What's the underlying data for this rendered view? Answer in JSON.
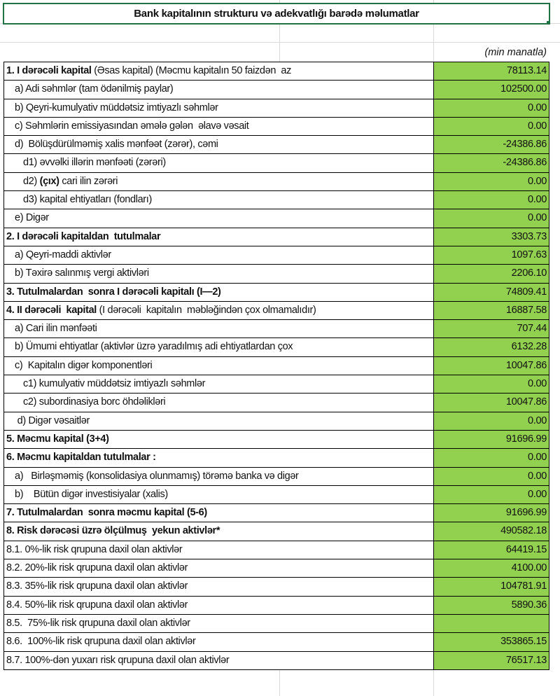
{
  "title": "Bank kapitalının strukturu və adekvatlığı barədə məlumatlar",
  "unit": "(min manatla)",
  "colors": {
    "value_fill": "#92d050",
    "selection": "#217346"
  },
  "rows": [
    {
      "indent": 0,
      "parts": [
        {
          "t": "1. I dərəcəli kapital",
          "b": true
        },
        {
          "t": " (Əsas kapital) (Məcmu kapitalın 50 faizdən  az"
        }
      ],
      "value": "78113.14"
    },
    {
      "indent": 1,
      "parts": [
        {
          "t": "a) Adi səhmlər (tam ödənilmiş paylar)"
        }
      ],
      "value": "102500.00"
    },
    {
      "indent": 1,
      "parts": [
        {
          "t": "b) Qeyri-kumulyativ müddətsiz imtiyazlı səhmlər"
        }
      ],
      "value": "0.00"
    },
    {
      "indent": 1,
      "parts": [
        {
          "t": "c) Səhmlərin emissiyasından əmələ gələn  əlavə vəsait"
        }
      ],
      "value": "0.00"
    },
    {
      "indent": 1,
      "parts": [
        {
          "t": "d)  Bölüşdürülməmiş xalis mənfəət (zərər), cəmi"
        }
      ],
      "value": "-24386.86"
    },
    {
      "indent": 2,
      "parts": [
        {
          "t": "d1) əvvəlki illərin mənfəəti (zərəri)"
        }
      ],
      "value": "-24386.86"
    },
    {
      "indent": 2,
      "parts": [
        {
          "t": "d2) "
        },
        {
          "t": "(çıx)",
          "b": true
        },
        {
          "t": " cari ilin zərəri"
        }
      ],
      "value": "0.00"
    },
    {
      "indent": 2,
      "parts": [
        {
          "t": "d3) kapital ehtiyatları (fondları)"
        }
      ],
      "value": "0.00"
    },
    {
      "indent": 1,
      "parts": [
        {
          "t": "e) Digər"
        }
      ],
      "value": "0.00"
    },
    {
      "indent": 0,
      "parts": [
        {
          "t": "2. I dərəcəli kapitaldan  tutulmalar",
          "b": true
        }
      ],
      "value": "3303.73"
    },
    {
      "indent": 1,
      "parts": [
        {
          "t": "a) Qeyri-maddi aktivlər"
        }
      ],
      "value": "1097.63"
    },
    {
      "indent": 1,
      "parts": [
        {
          "t": "b) Təxirə salınmış vergi aktivləri"
        }
      ],
      "value": "2206.10"
    },
    {
      "indent": 0,
      "parts": [
        {
          "t": "3. Tutulmalardan  sonra I dərəcəli kapitalı (I—2)",
          "b": true
        }
      ],
      "value": "74809.41"
    },
    {
      "indent": 0,
      "parts": [
        {
          "t": "4. II dərəcəli  kapital",
          "b": true
        },
        {
          "t": " (I dərəcəli  kapitalın  məbləğindən çox olmamalıdır)"
        }
      ],
      "value": "16887.58"
    },
    {
      "indent": 1,
      "parts": [
        {
          "t": "a) Cari ilin mənfəəti"
        }
      ],
      "value": "707.44"
    },
    {
      "indent": 1,
      "parts": [
        {
          "t": "b) Ümumi ehtiyatlar (aktivlər üzrə yaradılmış adi ehtiyatlardan çox"
        }
      ],
      "value": "6132.28"
    },
    {
      "indent": 1,
      "parts": [
        {
          "t": "c)  Kapitalın digər komponentləri"
        }
      ],
      "value": "10047.86"
    },
    {
      "indent": 2,
      "parts": [
        {
          "t": "c1) kumulyativ müddətsiz imtiyazlı səhmlər"
        }
      ],
      "value": "0.00"
    },
    {
      "indent": 2,
      "parts": [
        {
          "t": "c2) subordinasiya borc öhdəlikləri"
        }
      ],
      "value": "10047.86"
    },
    {
      "indent": 1,
      "parts": [
        {
          "t": " d) Digər vəsaitlər"
        }
      ],
      "value": "0.00"
    },
    {
      "indent": 0,
      "parts": [
        {
          "t": "5. Məcmu kapital (3+4)",
          "b": true
        }
      ],
      "value": "91696.99"
    },
    {
      "indent": 0,
      "parts": [
        {
          "t": "6. Məcmu kapitaldan tutulmalar :",
          "b": true
        }
      ],
      "value": "0.00"
    },
    {
      "indent": 1,
      "parts": [
        {
          "t": "a)   Birləşməmiş (konsolidasiya olunmamış) törəmə banka və digər"
        }
      ],
      "value": "0.00"
    },
    {
      "indent": 1,
      "parts": [
        {
          "t": "b)    Bütün digər investisiyalar (xalis)"
        }
      ],
      "value": "0.00"
    },
    {
      "indent": 0,
      "parts": [
        {
          "t": "7. Tutulmalardan  sonra məcmu kapital (5-6)",
          "b": true
        }
      ],
      "value": "91696.99"
    },
    {
      "indent": 0,
      "parts": [
        {
          "t": "8. Risk dərəcəsi üzrə ölçülmuş  yekun aktivlər*",
          "b": true
        }
      ],
      "value": "490582.18"
    },
    {
      "indent": 0,
      "parts": [
        {
          "t": "8.1. 0%-lik risk qrupuna daxil olan aktivlər"
        }
      ],
      "value": "64419.15"
    },
    {
      "indent": 0,
      "parts": [
        {
          "t": "8.2. 20%-lik risk qrupuna daxil olan aktivlər"
        }
      ],
      "value": "4100.00"
    },
    {
      "indent": 0,
      "parts": [
        {
          "t": "8.3. 35%-lik risk qrupuna daxil olan aktivlər"
        }
      ],
      "value": "104781.91"
    },
    {
      "indent": 0,
      "parts": [
        {
          "t": "8.4. 50%-lik risk qrupuna daxil olan aktivlər"
        }
      ],
      "value": "5890.36"
    },
    {
      "indent": 0,
      "parts": [
        {
          "t": "8.5.  75%-lik risk qrupuna daxil olan aktivlər"
        }
      ],
      "value": ""
    },
    {
      "indent": 0,
      "parts": [
        {
          "t": "8.6.  100%-lik risk qrupuna daxil olan aktivlər"
        }
      ],
      "value": "353865.15"
    },
    {
      "indent": 0,
      "parts": [
        {
          "t": "8.7. 100%-dən yuxarı risk qrupuna daxil olan aktivlər"
        }
      ],
      "value": "76517.13"
    }
  ]
}
